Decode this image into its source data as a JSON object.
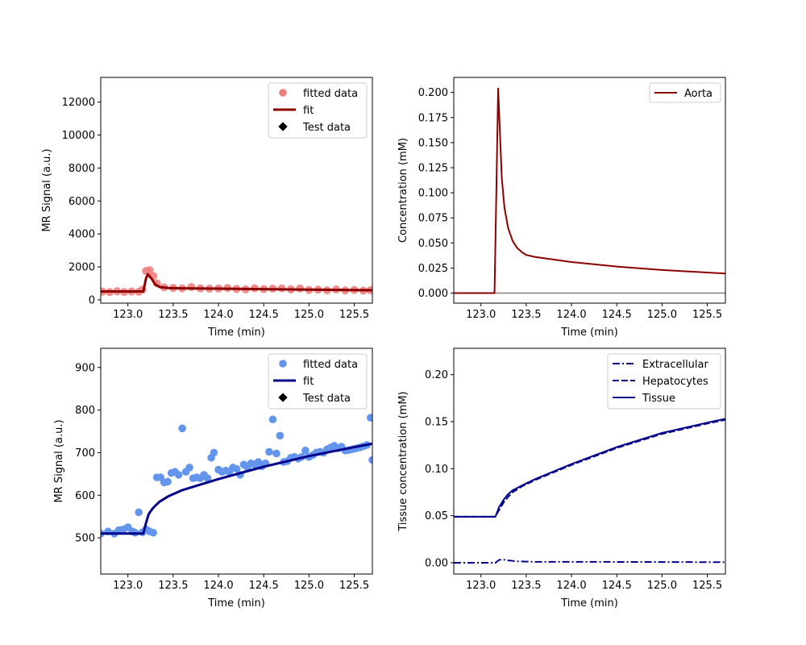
{
  "chart_data": [
    {
      "type": "scatter",
      "xlabel": "Time (min)",
      "ylabel": "MR Signal (a.u.)",
      "xlim": [
        122.7,
        125.7
      ],
      "ylim": [
        -200,
        13500
      ],
      "xticks": [
        123.0,
        123.5,
        124.0,
        124.5,
        125.0,
        125.5
      ],
      "yticks": [
        0,
        2000,
        4000,
        6000,
        8000,
        10000,
        12000
      ],
      "legend": "top-right",
      "colors": {
        "data": "#f08080",
        "fit": "#8b0000",
        "test": "#000000"
      },
      "series": [
        {
          "name": "fitted data",
          "kind": "markers",
          "x": [
            122.72,
            122.8,
            122.88,
            122.96,
            123.04,
            123.12,
            123.16,
            123.2,
            123.24,
            123.28,
            123.32,
            123.4,
            123.5,
            123.6,
            123.7,
            123.8,
            123.9,
            124.0,
            124.1,
            124.2,
            124.3,
            124.4,
            124.5,
            124.6,
            124.7,
            124.8,
            124.9,
            125.0,
            125.1,
            125.2,
            125.3,
            125.4,
            125.5,
            125.6,
            125.68
          ],
          "y": [
            500,
            470,
            520,
            480,
            510,
            490,
            620,
            1750,
            1800,
            1450,
            1000,
            760,
            720,
            700,
            780,
            700,
            680,
            690,
            720,
            660,
            640,
            700,
            650,
            680,
            700,
            640,
            690,
            600,
            620,
            580,
            630,
            570,
            600,
            560,
            590
          ]
        },
        {
          "name": "fit",
          "kind": "line",
          "x": [
            122.7,
            123.17,
            123.2,
            123.22,
            123.26,
            123.3,
            123.35,
            123.45,
            123.6,
            124.0,
            124.5,
            125.0,
            125.7
          ],
          "y": [
            510,
            510,
            1300,
            1550,
            1300,
            950,
            780,
            720,
            700,
            680,
            650,
            620,
            580
          ]
        },
        {
          "name": "Test data",
          "kind": "markers",
          "x": [],
          "y": []
        }
      ]
    },
    {
      "type": "line",
      "xlabel": "Time (min)",
      "ylabel": "Concentration (mM)",
      "xlim": [
        122.7,
        125.7
      ],
      "ylim": [
        -0.01,
        0.215
      ],
      "xticks": [
        123.0,
        123.5,
        124.0,
        124.5,
        125.0,
        125.5
      ],
      "yticks": [
        0.0,
        0.025,
        0.05,
        0.075,
        0.1,
        0.125,
        0.15,
        0.175,
        0.2
      ],
      "ytick_labels": [
        "0.000",
        "0.025",
        "0.050",
        "0.075",
        "0.100",
        "0.125",
        "0.150",
        "0.175",
        "0.200"
      ],
      "legend": "top-right",
      "colors": {
        "aorta": "#8b0000",
        "baseline": "#808080"
      },
      "series": [
        {
          "name": "Aorta",
          "x": [
            122.7,
            123.15,
            123.17,
            123.19,
            123.21,
            123.23,
            123.26,
            123.3,
            123.35,
            123.4,
            123.45,
            123.5,
            123.6,
            123.8,
            124.0,
            124.5,
            125.0,
            125.5,
            125.7
          ],
          "y": [
            0.0,
            0.0,
            0.1,
            0.204,
            0.16,
            0.115,
            0.085,
            0.065,
            0.052,
            0.045,
            0.041,
            0.038,
            0.036,
            0.0335,
            0.031,
            0.0265,
            0.023,
            0.0205,
            0.0195
          ]
        }
      ],
      "hline": 0.0
    },
    {
      "type": "scatter",
      "xlabel": "Time (min)",
      "ylabel": "MR Signal (a.u.)",
      "xlim": [
        122.7,
        125.7
      ],
      "ylim": [
        415,
        945
      ],
      "xticks": [
        123.0,
        123.5,
        124.0,
        124.5,
        125.0,
        125.5
      ],
      "yticks": [
        500,
        600,
        700,
        800,
        900
      ],
      "legend": "top-right",
      "colors": {
        "data": "#6495ed",
        "fit": "#00008b",
        "test": "#000000"
      },
      "series": [
        {
          "name": "fitted data",
          "kind": "markers",
          "x": [
            122.7,
            122.78,
            122.85,
            122.9,
            122.95,
            123.0,
            123.05,
            123.08,
            123.12,
            123.16,
            123.2,
            123.24,
            123.28,
            123.32,
            123.36,
            123.4,
            123.44,
            123.48,
            123.52,
            123.56,
            123.6,
            123.64,
            123.68,
            123.72,
            123.76,
            123.8,
            123.84,
            123.88,
            123.92,
            123.95,
            124.0,
            124.04,
            124.08,
            124.12,
            124.16,
            124.2,
            124.24,
            124.28,
            124.32,
            124.36,
            124.4,
            124.44,
            124.48,
            124.52,
            124.56,
            124.6,
            124.64,
            124.68,
            124.72,
            124.76,
            124.8,
            124.84,
            124.88,
            124.92,
            124.96,
            125.0,
            125.04,
            125.08,
            125.12,
            125.16,
            125.2,
            125.24,
            125.28,
            125.32,
            125.36,
            125.4,
            125.44,
            125.48,
            125.52,
            125.56,
            125.6,
            125.64,
            125.68,
            125.7
          ],
          "y": [
            510,
            515,
            510,
            518,
            520,
            525,
            515,
            512,
            560,
            513,
            520,
            515,
            512,
            642,
            642,
            630,
            632,
            652,
            655,
            648,
            757,
            655,
            665,
            640,
            642,
            640,
            648,
            640,
            688,
            700,
            660,
            655,
            658,
            655,
            665,
            662,
            648,
            672,
            665,
            675,
            672,
            678,
            668,
            675,
            702,
            778,
            698,
            740,
            678,
            680,
            688,
            690,
            686,
            690,
            705,
            690,
            694,
            700,
            702,
            700,
            708,
            712,
            716,
            710,
            714,
            705,
            706,
            708,
            710,
            712,
            715,
            718,
            782,
            683
          ]
        },
        {
          "name": "fit",
          "kind": "line",
          "x": [
            122.7,
            123.17,
            123.2,
            123.23,
            123.27,
            123.3,
            123.35,
            123.45,
            123.6,
            124.0,
            124.5,
            125.0,
            125.5,
            125.7
          ],
          "y": [
            510,
            510,
            535,
            556,
            568,
            575,
            585,
            598,
            612,
            638,
            667,
            692,
            713,
            721
          ]
        },
        {
          "name": "Test data",
          "kind": "markers",
          "x": [],
          "y": []
        }
      ]
    },
    {
      "type": "line",
      "xlabel": "Time (min)",
      "ylabel": "Tissue concentration (mM)",
      "xlim": [
        122.7,
        125.7
      ],
      "ylim": [
        -0.012,
        0.228
      ],
      "xticks": [
        123.0,
        123.5,
        124.0,
        124.5,
        125.0,
        125.5
      ],
      "yticks": [
        0.0,
        0.05,
        0.1,
        0.15,
        0.2
      ],
      "ytick_labels": [
        "0.00",
        "0.05",
        "0.10",
        "0.15",
        "0.20"
      ],
      "legend": "top-right",
      "colors": {
        "line": "#00008b"
      },
      "series": [
        {
          "name": "Extracellular",
          "dash": "dashdot",
          "x": [
            122.7,
            123.16,
            123.2,
            123.24,
            123.3,
            123.4,
            123.6,
            124.0,
            125.0,
            125.7
          ],
          "y": [
            0.0,
            0.0,
            0.003,
            0.0035,
            0.0025,
            0.0015,
            0.001,
            0.001,
            0.0008,
            0.0006
          ]
        },
        {
          "name": "Hepatocytes",
          "dash": "dashed",
          "x": [
            122.7,
            123.16,
            123.2,
            123.25,
            123.3,
            123.35,
            123.45,
            123.6,
            124.0,
            124.5,
            125.0,
            125.5,
            125.7
          ],
          "y": [
            0.049,
            0.049,
            0.056,
            0.064,
            0.07,
            0.075,
            0.081,
            0.088,
            0.104,
            0.122,
            0.137,
            0.148,
            0.152
          ]
        },
        {
          "name": "Tissue",
          "dash": "solid",
          "x": [
            122.7,
            123.16,
            123.2,
            123.25,
            123.3,
            123.35,
            123.45,
            123.6,
            124.0,
            124.5,
            125.0,
            125.5,
            125.7
          ],
          "y": [
            0.049,
            0.049,
            0.059,
            0.067,
            0.073,
            0.077,
            0.082,
            0.089,
            0.105,
            0.123,
            0.138,
            0.149,
            0.153
          ]
        }
      ]
    }
  ]
}
